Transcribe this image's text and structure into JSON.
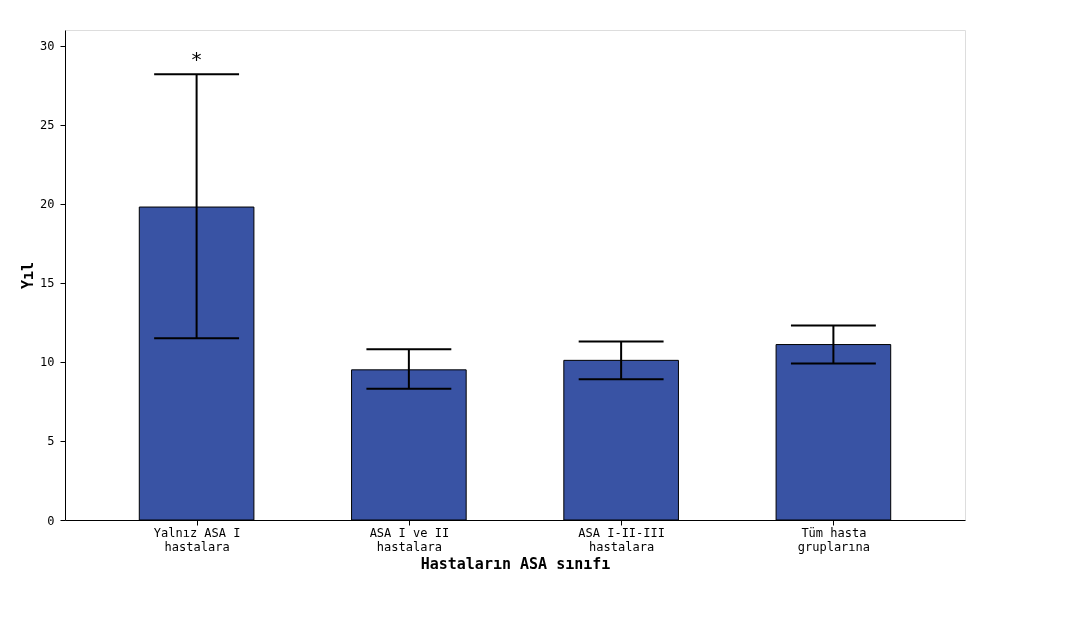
{
  "chart_data": {
    "type": "bar",
    "xlabel": "Hastaların ASA sınıfı",
    "ylabel": "Yıl",
    "categories": [
      "Yalnız ASA I\nhastalara",
      "ASA I ve II\nhastalara",
      "ASA I-II-III\nhastalara",
      "Tüm hasta\ngruplarına"
    ],
    "values": [
      19.8,
      9.5,
      10.1,
      11.1
    ],
    "errors": [
      [
        11.5,
        28.2
      ],
      [
        8.3,
        10.8
      ],
      [
        8.9,
        11.3
      ],
      [
        9.9,
        12.3
      ]
    ],
    "color": "#3953a4",
    "ylim": [
      0,
      31
    ],
    "yticks": [
      0,
      5,
      10,
      15,
      20,
      25,
      30
    ],
    "grid": false,
    "annotations": [
      "*"
    ]
  }
}
